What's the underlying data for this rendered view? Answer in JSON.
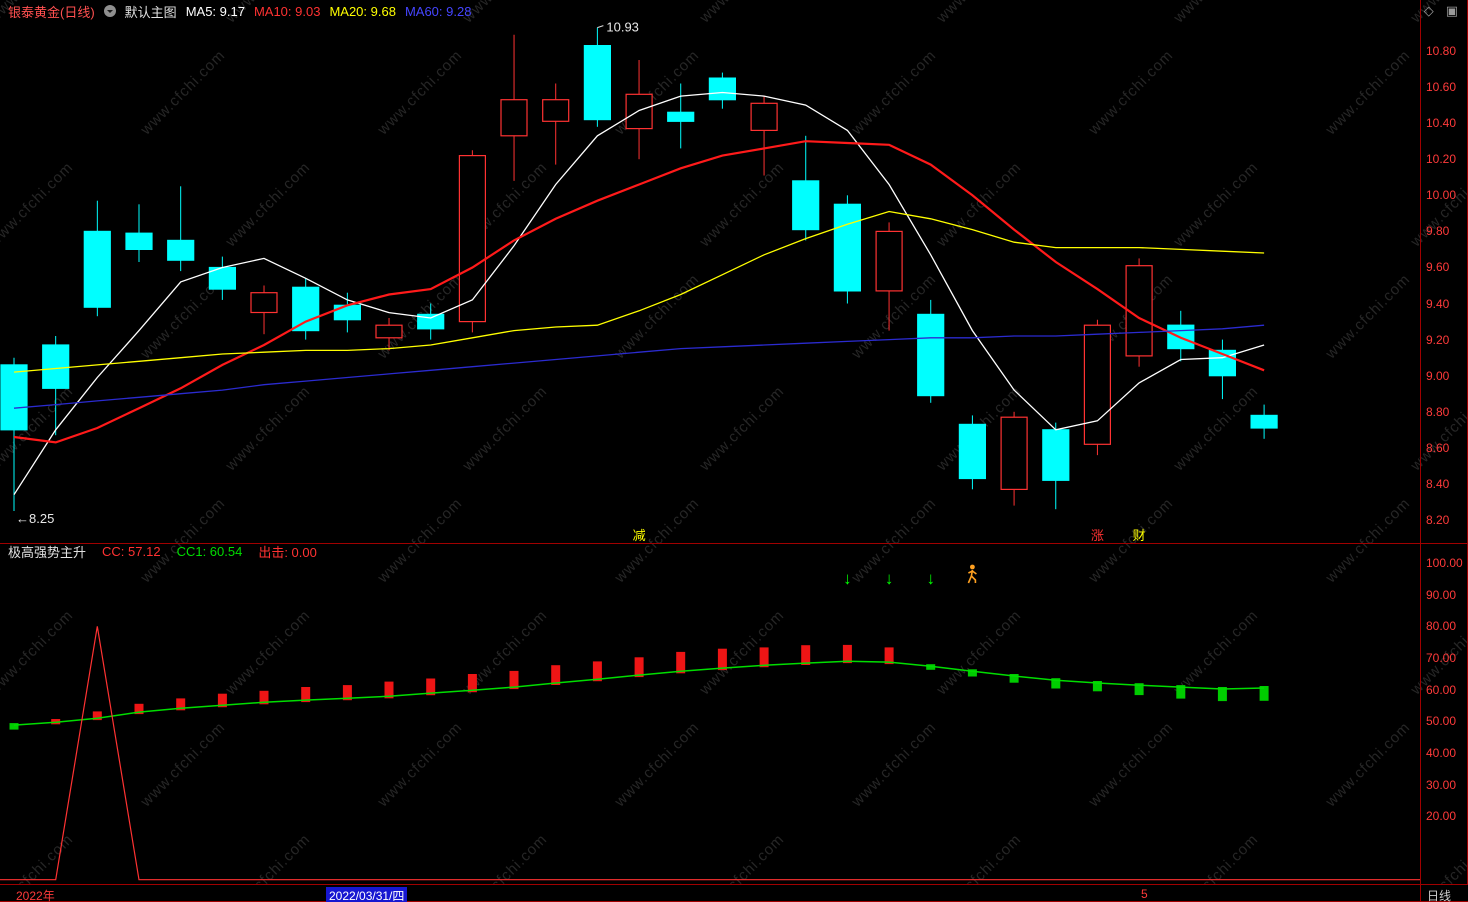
{
  "watermark": {
    "text": "www.cfchi.com"
  },
  "header": {
    "symbol": "银泰黄金(日线)",
    "symbol_color": "#ff5050",
    "overlay_label": "默认主图",
    "overlay_color": "#e0e0e0",
    "icons": {
      "diamond": "◇",
      "window": "▣"
    },
    "ma_labels": [
      {
        "text": "MA5: 9.17",
        "color": "#ffffff"
      },
      {
        "text": "MA10: 9.03",
        "color": "#ff3232"
      },
      {
        "text": "MA20: 9.68",
        "color": "#ffff00"
      },
      {
        "text": "MA60: 9.28",
        "color": "#4545ff"
      }
    ]
  },
  "indicator_header": {
    "title": "极高强势主升",
    "title_color": "#e0e0e0",
    "values": [
      {
        "text": "CC: 57.12",
        "color": "#ff3232"
      },
      {
        "text": "CC1: 60.54",
        "color": "#00dd00"
      },
      {
        "text": "出击: 0.00",
        "color": "#ff3232"
      }
    ]
  },
  "bottom_axis": {
    "year_label": "2022年",
    "date_label": "2022/03/31/四",
    "month_label": "5",
    "period_label": "日线"
  },
  "chart_data": [
    {
      "type": "candlestick",
      "title": "银泰黄金(日线)",
      "ylim": [
        8.2,
        10.8
      ],
      "y_ticks": [
        "10.80",
        "10.60",
        "10.40",
        "10.20",
        "10.00",
        "9.80",
        "9.60",
        "9.40",
        "9.20",
        "9.00",
        "8.80",
        "8.60",
        "8.40",
        "8.20"
      ],
      "up_color": "#ff3232",
      "down_color": "#00ffff",
      "frame_color": "#a00000",
      "candles": [
        {
          "o": 9.06,
          "h": 9.1,
          "l": 8.25,
          "c": 8.7,
          "d": "dn"
        },
        {
          "o": 9.17,
          "h": 9.22,
          "l": 8.67,
          "c": 8.93,
          "d": "dn"
        },
        {
          "o": 9.8,
          "h": 9.97,
          "l": 9.33,
          "c": 9.38,
          "d": "dn"
        },
        {
          "o": 9.79,
          "h": 9.95,
          "l": 9.63,
          "c": 9.7,
          "d": "dn"
        },
        {
          "o": 9.75,
          "h": 10.05,
          "l": 9.58,
          "c": 9.64,
          "d": "dn"
        },
        {
          "o": 9.6,
          "h": 9.66,
          "l": 9.42,
          "c": 9.48,
          "d": "dn"
        },
        {
          "o": 9.35,
          "h": 9.5,
          "l": 9.23,
          "c": 9.46,
          "d": "up"
        },
        {
          "o": 9.49,
          "h": 9.54,
          "l": 9.2,
          "c": 9.25,
          "d": "dn"
        },
        {
          "o": 9.39,
          "h": 9.46,
          "l": 9.24,
          "c": 9.31,
          "d": "dn"
        },
        {
          "o": 9.21,
          "h": 9.32,
          "l": 9.14,
          "c": 9.28,
          "d": "up"
        },
        {
          "o": 9.34,
          "h": 9.4,
          "l": 9.2,
          "c": 9.26,
          "d": "dn"
        },
        {
          "o": 9.3,
          "h": 10.25,
          "l": 9.24,
          "c": 10.22,
          "d": "up"
        },
        {
          "o": 10.33,
          "h": 10.89,
          "l": 10.08,
          "c": 10.53,
          "d": "up"
        },
        {
          "o": 10.41,
          "h": 10.62,
          "l": 10.17,
          "c": 10.53,
          "d": "up"
        },
        {
          "o": 10.83,
          "h": 10.93,
          "l": 10.38,
          "c": 10.42,
          "d": "dn"
        },
        {
          "o": 10.37,
          "h": 10.75,
          "l": 10.2,
          "c": 10.56,
          "d": "up"
        },
        {
          "o": 10.46,
          "h": 10.62,
          "l": 10.26,
          "c": 10.41,
          "d": "dn"
        },
        {
          "o": 10.65,
          "h": 10.68,
          "l": 10.48,
          "c": 10.53,
          "d": "dn"
        },
        {
          "o": 10.36,
          "h": 10.55,
          "l": 10.11,
          "c": 10.51,
          "d": "up"
        },
        {
          "o": 10.08,
          "h": 10.33,
          "l": 9.75,
          "c": 9.81,
          "d": "dn"
        },
        {
          "o": 9.95,
          "h": 10.0,
          "l": 9.4,
          "c": 9.47,
          "d": "dn"
        },
        {
          "o": 9.47,
          "h": 9.85,
          "l": 9.25,
          "c": 9.8,
          "d": "up"
        },
        {
          "o": 9.34,
          "h": 9.42,
          "l": 8.85,
          "c": 8.89,
          "d": "dn"
        },
        {
          "o": 8.73,
          "h": 8.78,
          "l": 8.37,
          "c": 8.43,
          "d": "dn"
        },
        {
          "o": 8.37,
          "h": 8.8,
          "l": 8.28,
          "c": 8.77,
          "d": "up"
        },
        {
          "o": 8.7,
          "h": 8.74,
          "l": 8.26,
          "c": 8.42,
          "d": "dn"
        },
        {
          "o": 8.62,
          "h": 9.31,
          "l": 8.56,
          "c": 9.28,
          "d": "up"
        },
        {
          "o": 9.11,
          "h": 9.65,
          "l": 9.05,
          "c": 9.61,
          "d": "up"
        },
        {
          "o": 9.28,
          "h": 9.36,
          "l": 9.08,
          "c": 9.15,
          "d": "dn"
        },
        {
          "o": 9.14,
          "h": 9.2,
          "l": 8.87,
          "c": 9.0,
          "d": "dn"
        },
        {
          "o": 8.78,
          "h": 8.84,
          "l": 8.65,
          "c": 8.71,
          "d": "dn"
        }
      ],
      "ma_series": [
        {
          "name": "MA5",
          "color": "#ffffff",
          "values": [
            8.34,
            8.7,
            8.99,
            9.25,
            9.52,
            9.6,
            9.65,
            9.54,
            9.42,
            9.35,
            9.32,
            9.42,
            9.72,
            10.06,
            10.33,
            10.47,
            10.55,
            10.57,
            10.55,
            10.5,
            10.36,
            10.06,
            9.67,
            9.25,
            8.92,
            8.7,
            8.75,
            8.96,
            9.09,
            9.1,
            9.17
          ]
        },
        {
          "name": "MA10",
          "color": "#ff1a1a",
          "values": [
            8.66,
            8.63,
            8.71,
            8.82,
            8.93,
            9.06,
            9.17,
            9.3,
            9.39,
            9.45,
            9.48,
            9.6,
            9.75,
            9.87,
            9.97,
            10.06,
            10.15,
            10.22,
            10.26,
            10.3,
            10.29,
            10.28,
            10.17,
            10.0,
            9.81,
            9.63,
            9.48,
            9.32,
            9.21,
            9.12,
            9.03
          ]
        },
        {
          "name": "MA20",
          "color": "#ffff00",
          "values": [
            9.02,
            9.04,
            9.06,
            9.08,
            9.1,
            9.12,
            9.13,
            9.14,
            9.14,
            9.15,
            9.17,
            9.21,
            9.25,
            9.27,
            9.28,
            9.36,
            9.45,
            9.56,
            9.67,
            9.76,
            9.84,
            9.91,
            9.87,
            9.81,
            9.74,
            9.71,
            9.71,
            9.71,
            9.7,
            9.69,
            9.68
          ]
        },
        {
          "name": "MA60",
          "color": "#2b2bd0",
          "values": [
            8.82,
            8.84,
            8.86,
            8.88,
            8.9,
            8.92,
            8.95,
            8.97,
            8.99,
            9.01,
            9.03,
            9.05,
            9.07,
            9.09,
            9.11,
            9.13,
            9.15,
            9.16,
            9.17,
            9.18,
            9.19,
            9.2,
            9.21,
            9.21,
            9.22,
            9.22,
            9.23,
            9.24,
            9.25,
            9.26,
            9.28
          ]
        }
      ],
      "annotations": [
        {
          "text": "10.93",
          "candle": 14,
          "pos": "high"
        },
        {
          "text": "←8.25",
          "candle": 0,
          "pos": "low"
        }
      ],
      "event_labels": [
        {
          "text": "减",
          "candle": 15,
          "color": "#ffff00"
        },
        {
          "text": "涨",
          "candle": 26,
          "color": "#ff3232"
        },
        {
          "text": "财",
          "candle": 27,
          "color": "#ffff00"
        }
      ]
    },
    {
      "type": "line",
      "title": "极高强势主升",
      "ylim": [
        0,
        100
      ],
      "y_ticks": [
        "100.00",
        "90.00",
        "80.00",
        "70.00",
        "60.00",
        "50.00",
        "40.00",
        "30.00",
        "20.00"
      ],
      "series": [
        {
          "name": "CC1",
          "style": "line",
          "color": "#00dd00",
          "values": [
            48.8,
            49.7,
            51.0,
            52.9,
            54.1,
            55.1,
            56.0,
            56.7,
            57.3,
            57.9,
            58.9,
            59.8,
            60.8,
            62.1,
            63.3,
            64.6,
            65.8,
            66.8,
            67.7,
            68.4,
            69.0,
            68.7,
            67.4,
            65.8,
            64.3,
            63.0,
            62.1,
            61.4,
            60.8,
            60.2,
            60.54
          ]
        },
        {
          "name": "CC",
          "style": "blocks",
          "up_color": "#ee1515",
          "down_color": "#00cc00",
          "values": [
            48.0,
            50.1,
            52.5,
            54.9,
            56.6,
            58.1,
            59.0,
            60.2,
            60.8,
            61.9,
            62.9,
            64.3,
            65.3,
            67.1,
            68.3,
            69.6,
            71.3,
            72.3,
            72.7,
            73.4,
            73.5,
            72.7,
            66.9,
            64.8,
            62.8,
            61.0,
            60.1,
            58.9,
            57.8,
            57.0,
            57.12
          ]
        },
        {
          "name": "出击",
          "style": "line",
          "color": "#ff3232",
          "values": [
            0,
            0,
            80,
            0,
            0,
            0,
            0,
            0,
            0,
            0,
            0,
            0,
            0,
            0,
            0,
            0,
            0,
            0,
            0,
            0,
            0,
            0,
            0,
            0,
            0,
            0,
            0,
            0,
            0,
            0,
            0
          ]
        }
      ],
      "markers": [
        {
          "type": "down-arrow",
          "candle": 20,
          "color": "#00ff00"
        },
        {
          "type": "down-arrow",
          "candle": 21,
          "color": "#00ff00"
        },
        {
          "type": "down-arrow",
          "candle": 22,
          "color": "#00ff00"
        },
        {
          "type": "runner",
          "candle": 23,
          "color": "#ffa020"
        }
      ]
    }
  ]
}
